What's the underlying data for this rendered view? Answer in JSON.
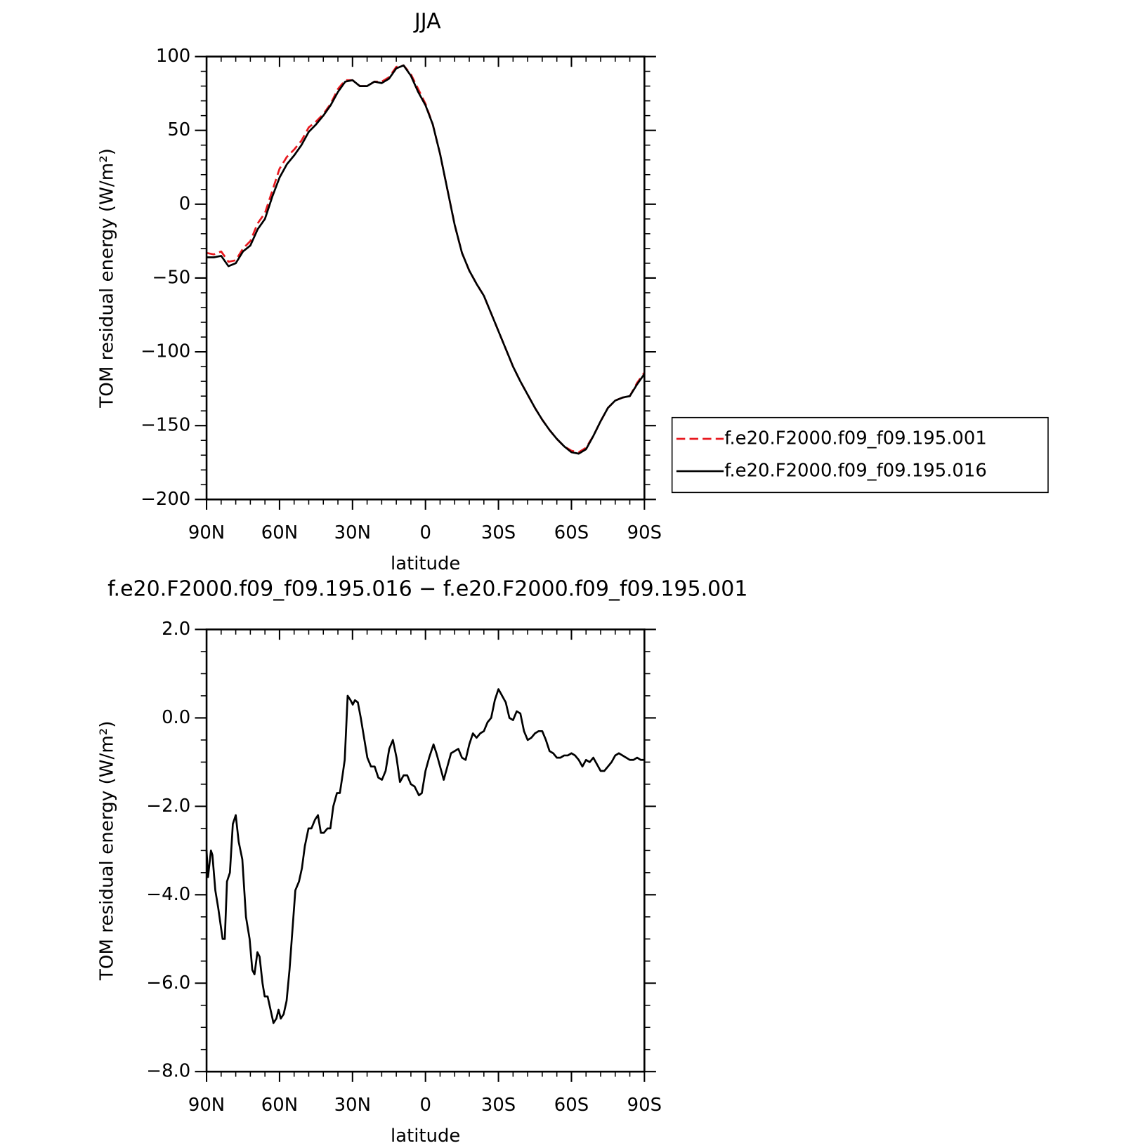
{
  "chart_data": [
    {
      "type": "line",
      "title": "JJA",
      "xlabel": "latitude",
      "ylabel": "TOM residual energy (W/m²)",
      "x": [
        90,
        87,
        84,
        81,
        78,
        75,
        72,
        69,
        66,
        63,
        60,
        57,
        54,
        51,
        48,
        45,
        42,
        39,
        36,
        33,
        30,
        27,
        24,
        21,
        18,
        15,
        12,
        9,
        6,
        3,
        0,
        -3,
        -6,
        -9,
        -12,
        -15,
        -18,
        -21,
        -24,
        -27,
        -30,
        -33,
        -36,
        -39,
        -42,
        -45,
        -48,
        -51,
        -54,
        -57,
        -60,
        -63,
        -66,
        -69,
        -72,
        -75,
        -78,
        -81,
        -84,
        -87,
        -90
      ],
      "series": [
        {
          "name": "f.e20.F2000.f09_f09.195.001",
          "color": "#e8191f",
          "line_style": "dashed",
          "values": [
            -33,
            -34,
            -32,
            -39,
            -38,
            -30,
            -25,
            -13,
            -6,
            9,
            24,
            32,
            37,
            43,
            52,
            56,
            61,
            68,
            78,
            84,
            84,
            80,
            80,
            83,
            83,
            86,
            93,
            94,
            88,
            78,
            68,
            54,
            34,
            10,
            -14,
            -33,
            -45,
            -54,
            -62,
            -74,
            -86,
            -98,
            -110,
            -120,
            -129,
            -138,
            -146,
            -153,
            -159,
            -164,
            -167,
            -168,
            -165,
            -157,
            -147,
            -138,
            -133,
            -131,
            -130,
            -121,
            -114
          ]
        },
        {
          "name": "f.e20.F2000.f09_f09.195.016",
          "color": "#000000",
          "line_style": "solid",
          "values": [
            -36,
            -36,
            -35,
            -42,
            -40,
            -32,
            -28,
            -17,
            -10,
            5,
            18,
            27,
            33,
            40,
            49,
            54,
            60,
            67,
            76,
            83,
            84,
            80,
            80,
            83,
            82,
            85,
            92,
            94,
            87,
            76,
            67,
            54,
            34,
            10,
            -14,
            -33,
            -45,
            -54,
            -62,
            -74,
            -86,
            -98,
            -110,
            -120,
            -129,
            -138,
            -146,
            -153,
            -159,
            -164,
            -168,
            -169,
            -166,
            -157,
            -147,
            -138,
            -133,
            -131,
            -130,
            -122,
            -115
          ]
        }
      ],
      "xlim": [
        90,
        -90
      ],
      "xticks": [
        {
          "value": 90,
          "label": "90N"
        },
        {
          "value": 60,
          "label": "60N"
        },
        {
          "value": 30,
          "label": "30N"
        },
        {
          "value": 0,
          "label": "0"
        },
        {
          "value": -30,
          "label": "30S"
        },
        {
          "value": -60,
          "label": "60S"
        },
        {
          "value": -90,
          "label": "90S"
        }
      ],
      "ylim": [
        -200,
        100
      ],
      "yticks": [
        {
          "value": -200,
          "label": "−200"
        },
        {
          "value": -150,
          "label": "−150"
        },
        {
          "value": -100,
          "label": "−100"
        },
        {
          "value": -50,
          "label": "−50"
        },
        0,
        50,
        100
      ],
      "legend": "right",
      "grid": false
    },
    {
      "type": "line",
      "title": "f.e20.F2000.f09_f09.195.016 − f.e20.F2000.f09_f09.195.001",
      "xlabel": "latitude",
      "ylabel": "TOM residual energy (W/m²)",
      "x": [
        90,
        89.4,
        88.2,
        87.6,
        86.4,
        85.2,
        83.4,
        82.5,
        81.6,
        80.4,
        79.2,
        78,
        76.8,
        75.3,
        73.8,
        72.3,
        71.2,
        70.3,
        69.1,
        68.2,
        67,
        66.1,
        64.9,
        63.7,
        62.5,
        61.3,
        60.4,
        59.5,
        58.3,
        57.1,
        55.9,
        54.7,
        53.5,
        52,
        50.8,
        49.6,
        48.1,
        46.9,
        45.4,
        44.2,
        43,
        41.8,
        40.3,
        39.1,
        37.9,
        36.4,
        35.2,
        34.1,
        33.2,
        32,
        30.8,
        29.9,
        29,
        27.8,
        26.6,
        25.4,
        23.9,
        22.4,
        20.9,
        19.4,
        17.9,
        16.4,
        14.9,
        13.4,
        11.9,
        10.5,
        9,
        7.5,
        6,
        4.5,
        2.7,
        1.5,
        0,
        -1.5,
        -3.3,
        -4.5,
        -6,
        -7.5,
        -9,
        -10.5,
        -12,
        -13.5,
        -15,
        -16.5,
        -18,
        -19.5,
        -21,
        -22.5,
        -24,
        -25.5,
        -27,
        -28.5,
        -30,
        -31.5,
        -33,
        -34.5,
        -36,
        -37.5,
        -39,
        -40.5,
        -42,
        -43.5,
        -45,
        -46.5,
        -48,
        -49.5,
        -51,
        -52.5,
        -54,
        -55.5,
        -57,
        -58.5,
        -60,
        -61.5,
        -63,
        -64.5,
        -66,
        -67.5,
        -69,
        -70.5,
        -72,
        -73.5,
        -75,
        -76.5,
        -78,
        -79.5,
        -81,
        -82.5,
        -84,
        -85.5,
        -87,
        -88.5,
        -90
      ],
      "series": [
        {
          "color": "#000000",
          "line_style": "solid",
          "values": [
            -3.0,
            -3.6,
            -3.0,
            -3.1,
            -3.9,
            -4.3,
            -5.0,
            -5.0,
            -3.7,
            -3.5,
            -2.4,
            -2.2,
            -2.8,
            -3.2,
            -4.5,
            -5.0,
            -5.7,
            -5.8,
            -5.3,
            -5.4,
            -6.0,
            -6.3,
            -6.3,
            -6.6,
            -6.9,
            -6.8,
            -6.6,
            -6.8,
            -6.7,
            -6.4,
            -5.7,
            -4.8,
            -3.9,
            -3.7,
            -3.4,
            -2.9,
            -2.5,
            -2.5,
            -2.3,
            -2.2,
            -2.6,
            -2.6,
            -2.5,
            -2.5,
            -2.0,
            -1.7,
            -1.7,
            -1.3,
            -0.95,
            0.5,
            0.4,
            0.3,
            0.4,
            0.35,
            0.0,
            -0.4,
            -0.9,
            -1.1,
            -1.1,
            -1.35,
            -1.4,
            -1.2,
            -0.7,
            -0.5,
            -0.9,
            -1.45,
            -1.3,
            -1.3,
            -1.5,
            -1.55,
            -1.75,
            -1.7,
            -1.2,
            -0.9,
            -0.6,
            -0.8,
            -1.1,
            -1.4,
            -1.1,
            -0.8,
            -0.75,
            -0.7,
            -0.9,
            -0.95,
            -0.6,
            -0.35,
            -0.45,
            -0.35,
            -0.3,
            -0.1,
            0.0,
            0.4,
            0.65,
            0.5,
            0.35,
            0.0,
            -0.05,
            0.15,
            0.1,
            -0.3,
            -0.5,
            -0.45,
            -0.35,
            -0.3,
            -0.3,
            -0.5,
            -0.75,
            -0.8,
            -0.9,
            -0.9,
            -0.85,
            -0.85,
            -0.8,
            -0.85,
            -0.95,
            -1.1,
            -0.95,
            -1.0,
            -0.9,
            -1.05,
            -1.2,
            -1.2,
            -1.1,
            -1.0,
            -0.85,
            -0.8,
            -0.85,
            -0.9,
            -0.95,
            -0.95,
            -0.9,
            -0.95,
            -0.95
          ]
        }
      ],
      "xlim": [
        90,
        -90
      ],
      "xticks": [
        {
          "value": 90,
          "label": "90N"
        },
        {
          "value": 60,
          "label": "60N"
        },
        {
          "value": 30,
          "label": "30N"
        },
        {
          "value": 0,
          "label": "0"
        },
        {
          "value": -30,
          "label": "30S"
        },
        {
          "value": -60,
          "label": "60S"
        },
        {
          "value": -90,
          "label": "90S"
        }
      ],
      "ylim": [
        -8,
        2
      ],
      "yticks": [
        {
          "value": -8,
          "label": "−8.0"
        },
        {
          "value": -6,
          "label": "−6.0"
        },
        {
          "value": -4,
          "label": "−4.0"
        },
        {
          "value": -2,
          "label": "−2.0"
        },
        {
          "value": 0,
          "label": "0.0"
        },
        {
          "value": 2,
          "label": "2.0"
        }
      ],
      "grid": false
    }
  ]
}
